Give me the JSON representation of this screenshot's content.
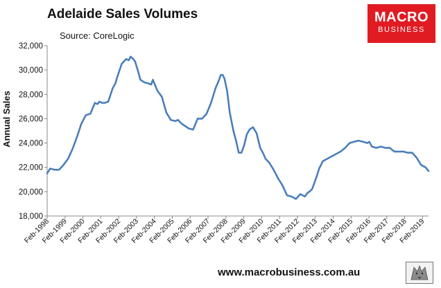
{
  "header": {
    "title": "Adelaide Sales Volumes",
    "source": "Source: CoreLogic"
  },
  "logo": {
    "line1": "MACRO",
    "line2": "BUSINESS",
    "brand_color": "#e01b22"
  },
  "footer": {
    "website": "www.macrobusiness.com.au",
    "mascot_icon": "wolf-icon"
  },
  "chart_data": {
    "type": "line",
    "title": "Adelaide Sales Volumes",
    "ylabel": "Annual Sales",
    "xlabel": "",
    "ylim": [
      18000,
      32000
    ],
    "yticks": [
      18000,
      20000,
      22000,
      24000,
      26000,
      28000,
      30000,
      32000
    ],
    "ytick_labels": [
      "18,000",
      "20,000",
      "22,000",
      "24,000",
      "26,000",
      "28,000",
      "30,000",
      "32,000"
    ],
    "xlim": [
      1998.083,
      2019.417
    ],
    "xtick_labels": [
      "Feb-1998",
      "Feb-1999",
      "Feb-2000",
      "Feb-2001",
      "Feb-2002",
      "Feb-2003",
      "Feb-2004",
      "Feb-2005",
      "Feb-2006",
      "Feb-2007",
      "Feb-2008",
      "Feb-2009",
      "Feb-2010",
      "Feb-2011",
      "Feb-2012",
      "Feb-2013",
      "Feb-2014",
      "Feb-2015",
      "Feb-2016",
      "Feb-2017",
      "Feb-2018",
      "Feb-2019"
    ],
    "grid": false,
    "line_color": "#4a7ebb",
    "series": [
      {
        "x": [
          1998.083,
          1998.25,
          1998.5,
          1998.75,
          1999.0,
          1999.25,
          1999.5,
          1999.75,
          2000.0,
          2000.25,
          2000.5,
          2000.75,
          2000.9,
          2001.0,
          2001.15,
          2001.3,
          2001.5,
          2001.75,
          2001.9,
          2002.0,
          2002.25,
          2002.5,
          2002.65,
          2002.75,
          2002.9,
          2003.0,
          2003.15,
          2003.3,
          2003.5,
          2003.75,
          2003.9,
          2004.0,
          2004.25,
          2004.5,
          2004.75,
          2005.0,
          2005.25,
          2005.4,
          2005.6,
          2005.8,
          2006.0,
          2006.25,
          2006.5,
          2006.75,
          2007.0,
          2007.25,
          2007.5,
          2007.65,
          2007.8,
          2007.9,
          2008.0,
          2008.15,
          2008.3,
          2008.5,
          2008.65,
          2008.8,
          2008.95,
          2009.1,
          2009.25,
          2009.4,
          2009.6,
          2009.8,
          2010.0,
          2010.15,
          2010.3,
          2010.5,
          2010.75,
          2011.0,
          2011.25,
          2011.5,
          2011.75,
          2012.0,
          2012.25,
          2012.5,
          2012.65,
          2012.75,
          2012.9,
          2013.0,
          2013.15,
          2013.3,
          2013.5,
          2013.75,
          2014.0,
          2014.25,
          2014.5,
          2014.75,
          2015.0,
          2015.25,
          2015.5,
          2015.75,
          2016.0,
          2016.1,
          2016.25,
          2016.5,
          2016.75,
          2017.0,
          2017.25,
          2017.5,
          2017.75,
          2018.0,
          2018.25,
          2018.5,
          2018.75,
          2019.0,
          2019.25,
          2019.417
        ],
        "values": [
          21500,
          21900,
          21800,
          21800,
          22200,
          22700,
          23500,
          24500,
          25600,
          26300,
          26400,
          27300,
          27200,
          27400,
          27300,
          27300,
          27400,
          28500,
          28900,
          29400,
          30500,
          30900,
          30800,
          31100,
          30900,
          30700,
          30000,
          29200,
          29000,
          28900,
          28800,
          29200,
          28300,
          27800,
          26500,
          25900,
          25800,
          25900,
          25600,
          25400,
          25200,
          25100,
          26000,
          26000,
          26400,
          27300,
          28500,
          29000,
          29600,
          29600,
          29300,
          28300,
          26500,
          25000,
          24200,
          23200,
          23200,
          23800,
          24700,
          25100,
          25300,
          24800,
          23600,
          23200,
          22700,
          22400,
          21800,
          21100,
          20500,
          19700,
          19600,
          19400,
          19800,
          19600,
          19900,
          20000,
          20200,
          20600,
          21200,
          21900,
          22500,
          22700,
          22900,
          23100,
          23300,
          23600,
          24000,
          24100,
          24200,
          24100,
          24000,
          24100,
          23700,
          23600,
          23700,
          23600,
          23600,
          23300,
          23300,
          23300,
          23200,
          23200,
          22800,
          22200,
          22000,
          21700
        ]
      }
    ]
  }
}
